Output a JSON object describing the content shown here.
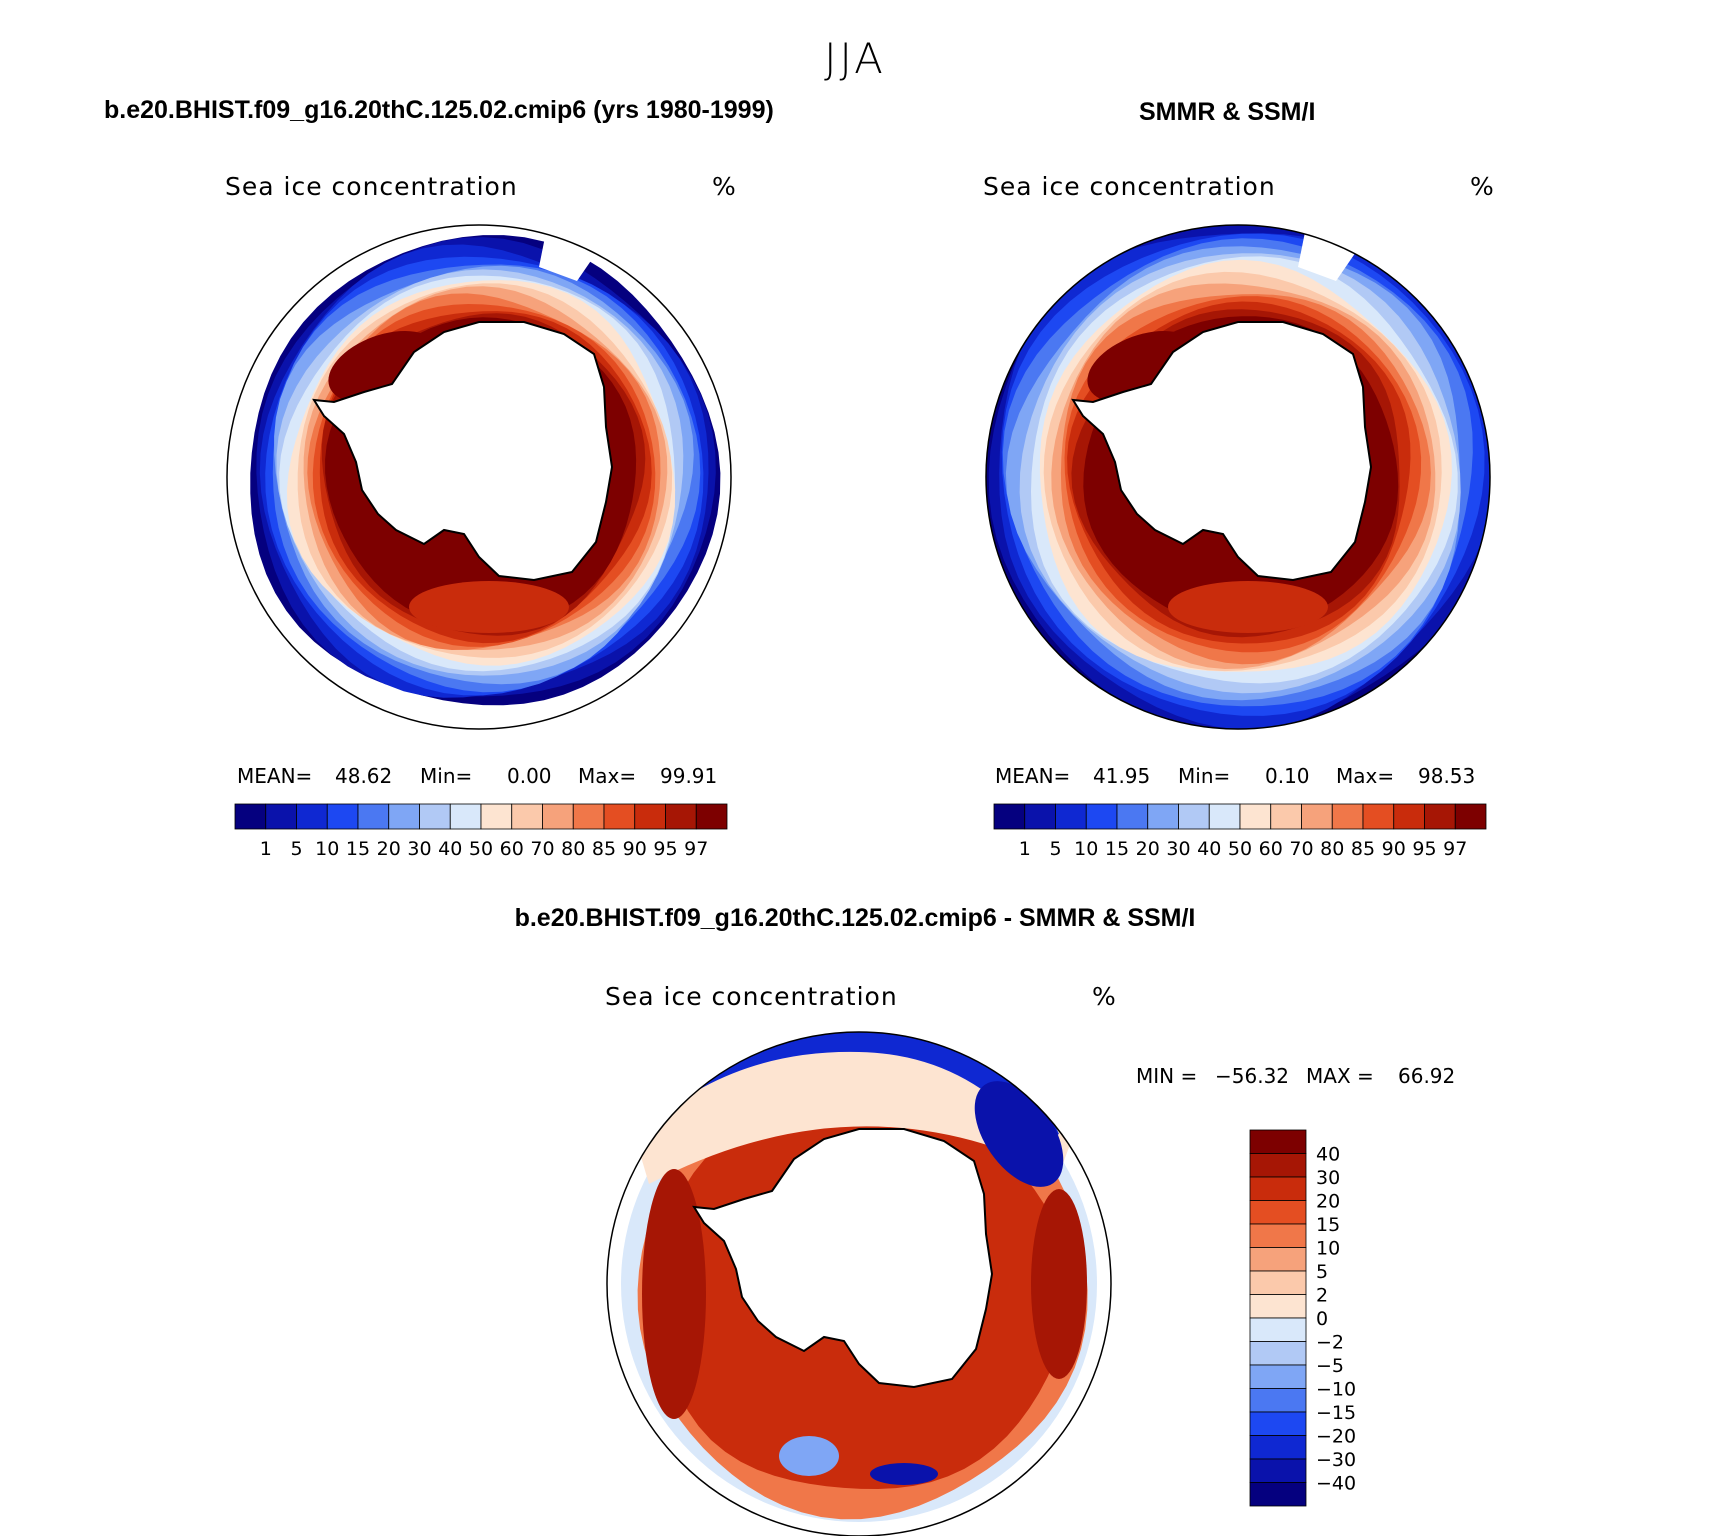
{
  "page": {
    "main_title": "JJA",
    "difference_title": "b.e20.BHIST.f09_g16.20thC.125.02.cmip6 - SMMR & SSM/I"
  },
  "chart_data": [
    {
      "type": "heatmap",
      "title": "b.e20.BHIST.f09_g16.20thC.125.02.cmip6 (yrs 1980-1999)",
      "subtitle": "Sea ice concentration",
      "units": "%",
      "stats": {
        "mean_label": "MEAN=",
        "mean": "48.62",
        "min_label": "Min=",
        "min": "0.00",
        "max_label": "Max=",
        "max": "99.91"
      },
      "colorbar_labels": [
        "1",
        "5",
        "10",
        "15",
        "20",
        "30",
        "40",
        "50",
        "60",
        "70",
        "80",
        "85",
        "90",
        "95",
        "97"
      ],
      "colors": [
        "#05007f",
        "#0a12ab",
        "#0f28d2",
        "#1d48f2",
        "#4b78f2",
        "#7fa6f5",
        "#b1c9f5",
        "#d9e8fa",
        "#fde4d1",
        "#fbc9ab",
        "#f6a27b",
        "#f07749",
        "#e44e22",
        "#c92c0c",
        "#a61605",
        "#7d0000"
      ]
    },
    {
      "type": "heatmap",
      "title": "SMMR & SSM/I",
      "subtitle": "Sea ice concentration",
      "units": "%",
      "stats": {
        "mean_label": "MEAN=",
        "mean": "41.95",
        "min_label": "Min=",
        "min": "0.10",
        "max_label": "Max=",
        "max": "98.53"
      },
      "colorbar_labels": [
        "1",
        "5",
        "10",
        "15",
        "20",
        "30",
        "40",
        "50",
        "60",
        "70",
        "80",
        "85",
        "90",
        "95",
        "97"
      ]
    },
    {
      "type": "heatmap",
      "title": "b.e20.BHIST.f09_g16.20thC.125.02.cmip6 - SMMR & SSM/I",
      "subtitle": "Sea ice concentration",
      "units": "%",
      "stats": {
        "min_label": "MIN =",
        "min": "−56.32",
        "max_label": "MAX =",
        "max": "66.92"
      },
      "colorbar_labels": [
        "40",
        "30",
        "20",
        "15",
        "10",
        "5",
        "2",
        "0",
        "−2",
        "−5",
        "−10",
        "−15",
        "−20",
        "−30",
        "−40"
      ],
      "colors": [
        "#7d0000",
        "#a61605",
        "#c92c0c",
        "#e44e22",
        "#f07749",
        "#f6a27b",
        "#fbc9ab",
        "#fde4d1",
        "#d9e8fa",
        "#b1c9f5",
        "#7fa6f5",
        "#4b78f2",
        "#1d48f2",
        "#0f28d2",
        "#0a12ab",
        "#05007f"
      ]
    }
  ]
}
